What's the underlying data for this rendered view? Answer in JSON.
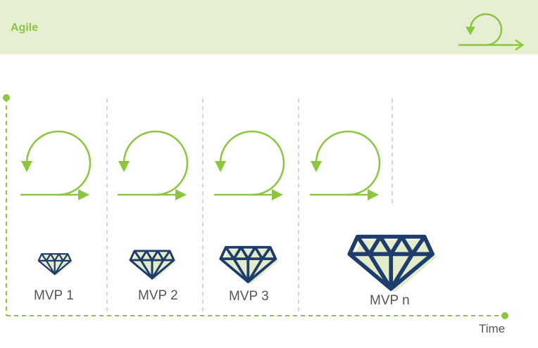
{
  "header": {
    "title": "Agile",
    "icon": "agile-cycle-icon"
  },
  "sprints": [
    {
      "icon": "iteration-cycle-icon"
    },
    {
      "icon": "iteration-cycle-icon"
    },
    {
      "icon": "iteration-cycle-icon"
    },
    {
      "icon": "iteration-cycle-icon"
    }
  ],
  "mvps": [
    {
      "label": "MVP 1",
      "icon": "diamond-icon"
    },
    {
      "label": "MVP 2",
      "icon": "diamond-icon"
    },
    {
      "label": "MVP 3",
      "icon": "diamond-icon"
    },
    {
      "label": "MVP n",
      "icon": "diamond-icon"
    }
  ],
  "axis": {
    "time_label": "Time"
  },
  "colors": {
    "accent_green": "#8cc63f",
    "header_bg": "#e6efd3",
    "diamond_stroke": "#1f3d6b",
    "diamond_fill": "#e3ecca",
    "divider": "#cccccc",
    "label_text": "#555555"
  }
}
